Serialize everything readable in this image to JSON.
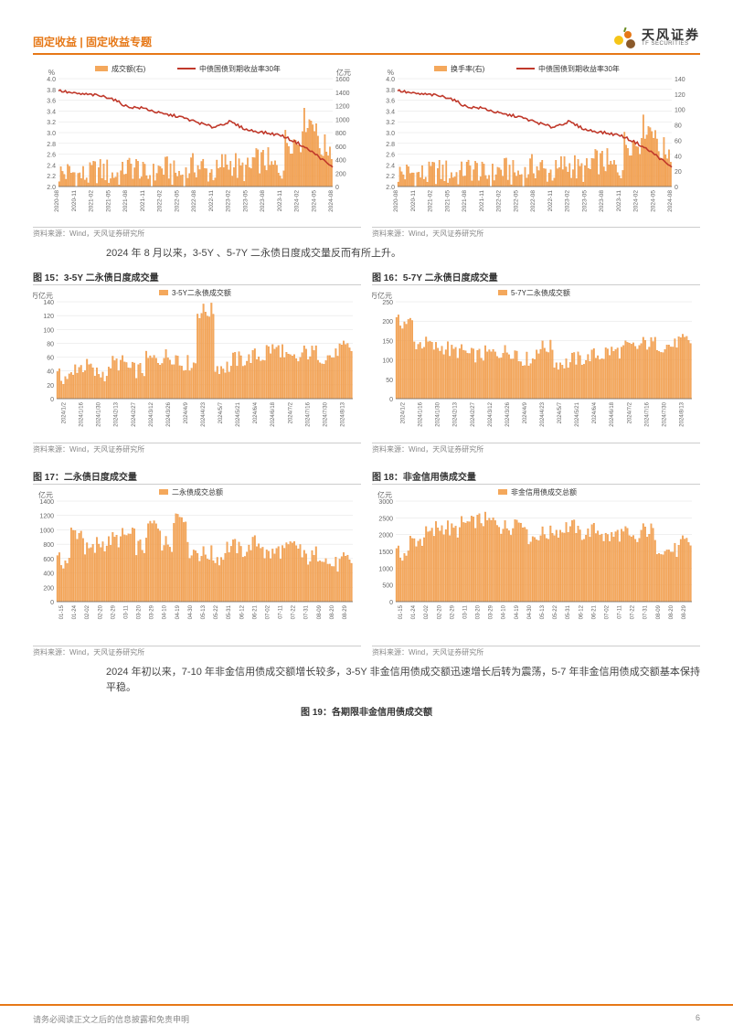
{
  "header": {
    "title": "固定收益 | 固定收益专题",
    "brand_cn": "天风证券",
    "brand_en": "TF SECURITIES"
  },
  "colors": {
    "accent": "#e67817",
    "bar": "#f4a85c",
    "bar_fill": "#f4a85c",
    "line_red": "#c0392b",
    "grid": "#e0e0e0",
    "axis": "#888888",
    "text": "#333333",
    "bg": "#ffffff",
    "logo_yellow": "#f5c518",
    "logo_orange": "#e67817",
    "logo_brown": "#8b5a2b"
  },
  "chart_top_left": {
    "type": "combo-bar-line",
    "legend_bar": "成交额(右)",
    "legend_line": "中债国债到期收益率30年",
    "y_left_label": "%",
    "y_right_label": "亿元",
    "y_left": {
      "min": 2.0,
      "max": 4.0,
      "step": 0.2
    },
    "y_right": {
      "min": 0,
      "max": 1600,
      "step": 200
    },
    "x_categories": [
      "2020-08",
      "2020-11",
      "2021-02",
      "2021-05",
      "2021-08",
      "2021-11",
      "2022-02",
      "2022-05",
      "2022-08",
      "2022-11",
      "2023-02",
      "2023-05",
      "2023-08",
      "2023-11",
      "2024-02",
      "2024-05",
      "2024-08"
    ],
    "line_values": [
      3.78,
      3.72,
      3.7,
      3.65,
      3.48,
      3.45,
      3.35,
      3.3,
      3.2,
      3.1,
      3.2,
      3.05,
      3.0,
      2.95,
      2.8,
      2.6,
      2.35
    ],
    "bar_pattern": [
      120,
      80,
      150,
      100,
      200,
      90,
      180,
      110,
      220,
      140,
      260,
      170,
      300,
      200,
      600,
      900,
      500
    ],
    "bar_noise_amp": 400,
    "source": "资料来源：Wind，天风证券研究所"
  },
  "chart_top_right": {
    "type": "combo-bar-line",
    "legend_bar": "换手率(右)",
    "legend_line": "中债国债到期收益率30年",
    "y_left_label": "%",
    "y_right_label": "",
    "y_left": {
      "min": 2.0,
      "max": 4.0,
      "step": 0.2
    },
    "y_right": {
      "min": 0,
      "max": 140,
      "step": 20
    },
    "x_categories": [
      "2020-08",
      "2020-11",
      "2021-02",
      "2021-05",
      "2021-08",
      "2021-11",
      "2022-02",
      "2022-05",
      "2022-08",
      "2022-11",
      "2023-02",
      "2023-05",
      "2023-08",
      "2023-11",
      "2024-02",
      "2024-05",
      "2024-08"
    ],
    "line_values": [
      3.78,
      3.72,
      3.7,
      3.65,
      3.48,
      3.45,
      3.35,
      3.3,
      3.2,
      3.1,
      3.2,
      3.05,
      3.0,
      2.95,
      2.8,
      2.6,
      2.35
    ],
    "bar_pattern": [
      10,
      8,
      12,
      9,
      15,
      8,
      14,
      10,
      18,
      12,
      20,
      14,
      25,
      18,
      50,
      70,
      40
    ],
    "bar_noise_amp": 35,
    "source": "资料来源：Wind，天风证券研究所"
  },
  "paragraph1": "2024 年 8 月以来，3-5Y 、5-7Y 二永债日度成交量反而有所上升。",
  "chart15": {
    "title": "图 15：3-5Y 二永债日度成交量",
    "type": "bar",
    "legend": "3-5Y二永债成交额",
    "y_label": "万亿元",
    "y": {
      "min": 0,
      "max": 140,
      "step": 20
    },
    "x_categories": [
      "2024/1/2",
      "2024/1/16",
      "2024/1/30",
      "2024/2/13",
      "2024/2/27",
      "2024/3/12",
      "2024/3/26",
      "2024/4/9",
      "2024/4/23",
      "2024/5/7",
      "2024/5/21",
      "2024/6/4",
      "2024/6/18",
      "2024/7/2",
      "2024/7/16",
      "2024/7/30",
      "2024/8/13"
    ],
    "bar_pattern": [
      30,
      45,
      35,
      50,
      40,
      55,
      60,
      50,
      125,
      45,
      55,
      60,
      70,
      55,
      65,
      60,
      70
    ],
    "bar_noise_amp": 25,
    "source": "资料来源：Wind，天风证券研究所"
  },
  "chart16": {
    "title": "图 16：5-7Y 二永债日度成交量",
    "type": "bar",
    "legend": "5-7Y二永债成交额",
    "y_label": "万亿元",
    "y": {
      "min": 0,
      "max": 250,
      "step": 50
    },
    "x_categories": [
      "2024/1/2",
      "2024/1/16",
      "2024/1/30",
      "2024/2/13",
      "2024/2/27",
      "2024/3/12",
      "2024/3/26",
      "2024/4/9",
      "2024/4/23",
      "2024/5/7",
      "2024/5/21",
      "2024/6/4",
      "2024/6/18",
      "2024/7/2",
      "2024/7/16",
      "2024/7/30",
      "2024/8/13"
    ],
    "bar_pattern": [
      195,
      140,
      130,
      120,
      110,
      115,
      120,
      100,
      130,
      90,
      100,
      110,
      120,
      130,
      140,
      135,
      145
    ],
    "bar_noise_amp": 40,
    "source": "资料来源：Wind，天风证券研究所"
  },
  "chart17": {
    "title": "图 17：二永债日度成交量",
    "type": "bar",
    "legend": "二永债成交总额",
    "y_label": "亿元",
    "y": {
      "min": 0,
      "max": 1400,
      "step": 200
    },
    "x_sparse": [
      "01-15",
      "01-24",
      "02-02",
      "02-20",
      "02-29",
      "03-11",
      "03-20",
      "03-29",
      "04-10",
      "04-19",
      "04-30",
      "05-13",
      "05-22",
      "05-31",
      "06-12",
      "06-21",
      "07-02",
      "07-11",
      "07-22",
      "07-31",
      "08-09",
      "08-20",
      "08-29"
    ],
    "bar_pattern": [
      550,
      950,
      700,
      800,
      850,
      900,
      750,
      1050,
      800,
      1200,
      700,
      650,
      600,
      750,
      700,
      800,
      650,
      700,
      750,
      600,
      650,
      500,
      550
    ],
    "bar_noise_amp": 250,
    "source": "资料来源：Wind，天风证券研究所"
  },
  "chart18": {
    "title": "图 18：非金信用债成交量",
    "type": "bar",
    "legend": "非金信用债成交总额",
    "y_label": "亿元",
    "y": {
      "min": 0,
      "max": 3000,
      "step": 500
    },
    "x_sparse": [
      "01-15",
      "01-24",
      "02-02",
      "02-20",
      "02-29",
      "03-11",
      "03-20",
      "03-29",
      "04-10",
      "04-19",
      "04-30",
      "05-13",
      "05-22",
      "05-31",
      "06-12",
      "06-21",
      "07-02",
      "07-11",
      "07-22",
      "07-31",
      "08-09",
      "08-20",
      "08-29"
    ],
    "bar_pattern": [
      1400,
      1800,
      2000,
      2200,
      2100,
      2300,
      2400,
      2350,
      2200,
      2400,
      1900,
      2000,
      2100,
      2200,
      2000,
      2100,
      1900,
      2000,
      1800,
      2100,
      1600,
      1500,
      1700
    ],
    "bar_noise_amp": 500,
    "source": "资料来源：Wind，天风证券研究所"
  },
  "paragraph2": "2024 年初以来，7-10 年非金信用债成交额增长较多，3-5Y 非金信用债成交额迅速增长后转为震荡，5-7 年非金信用债成交额基本保持平稳。",
  "fig19_caption": "图 19：各期限非金信用债成交额",
  "footer": {
    "disclaimer": "请务必阅读正文之后的信息披露和免责申明",
    "page": "6"
  }
}
